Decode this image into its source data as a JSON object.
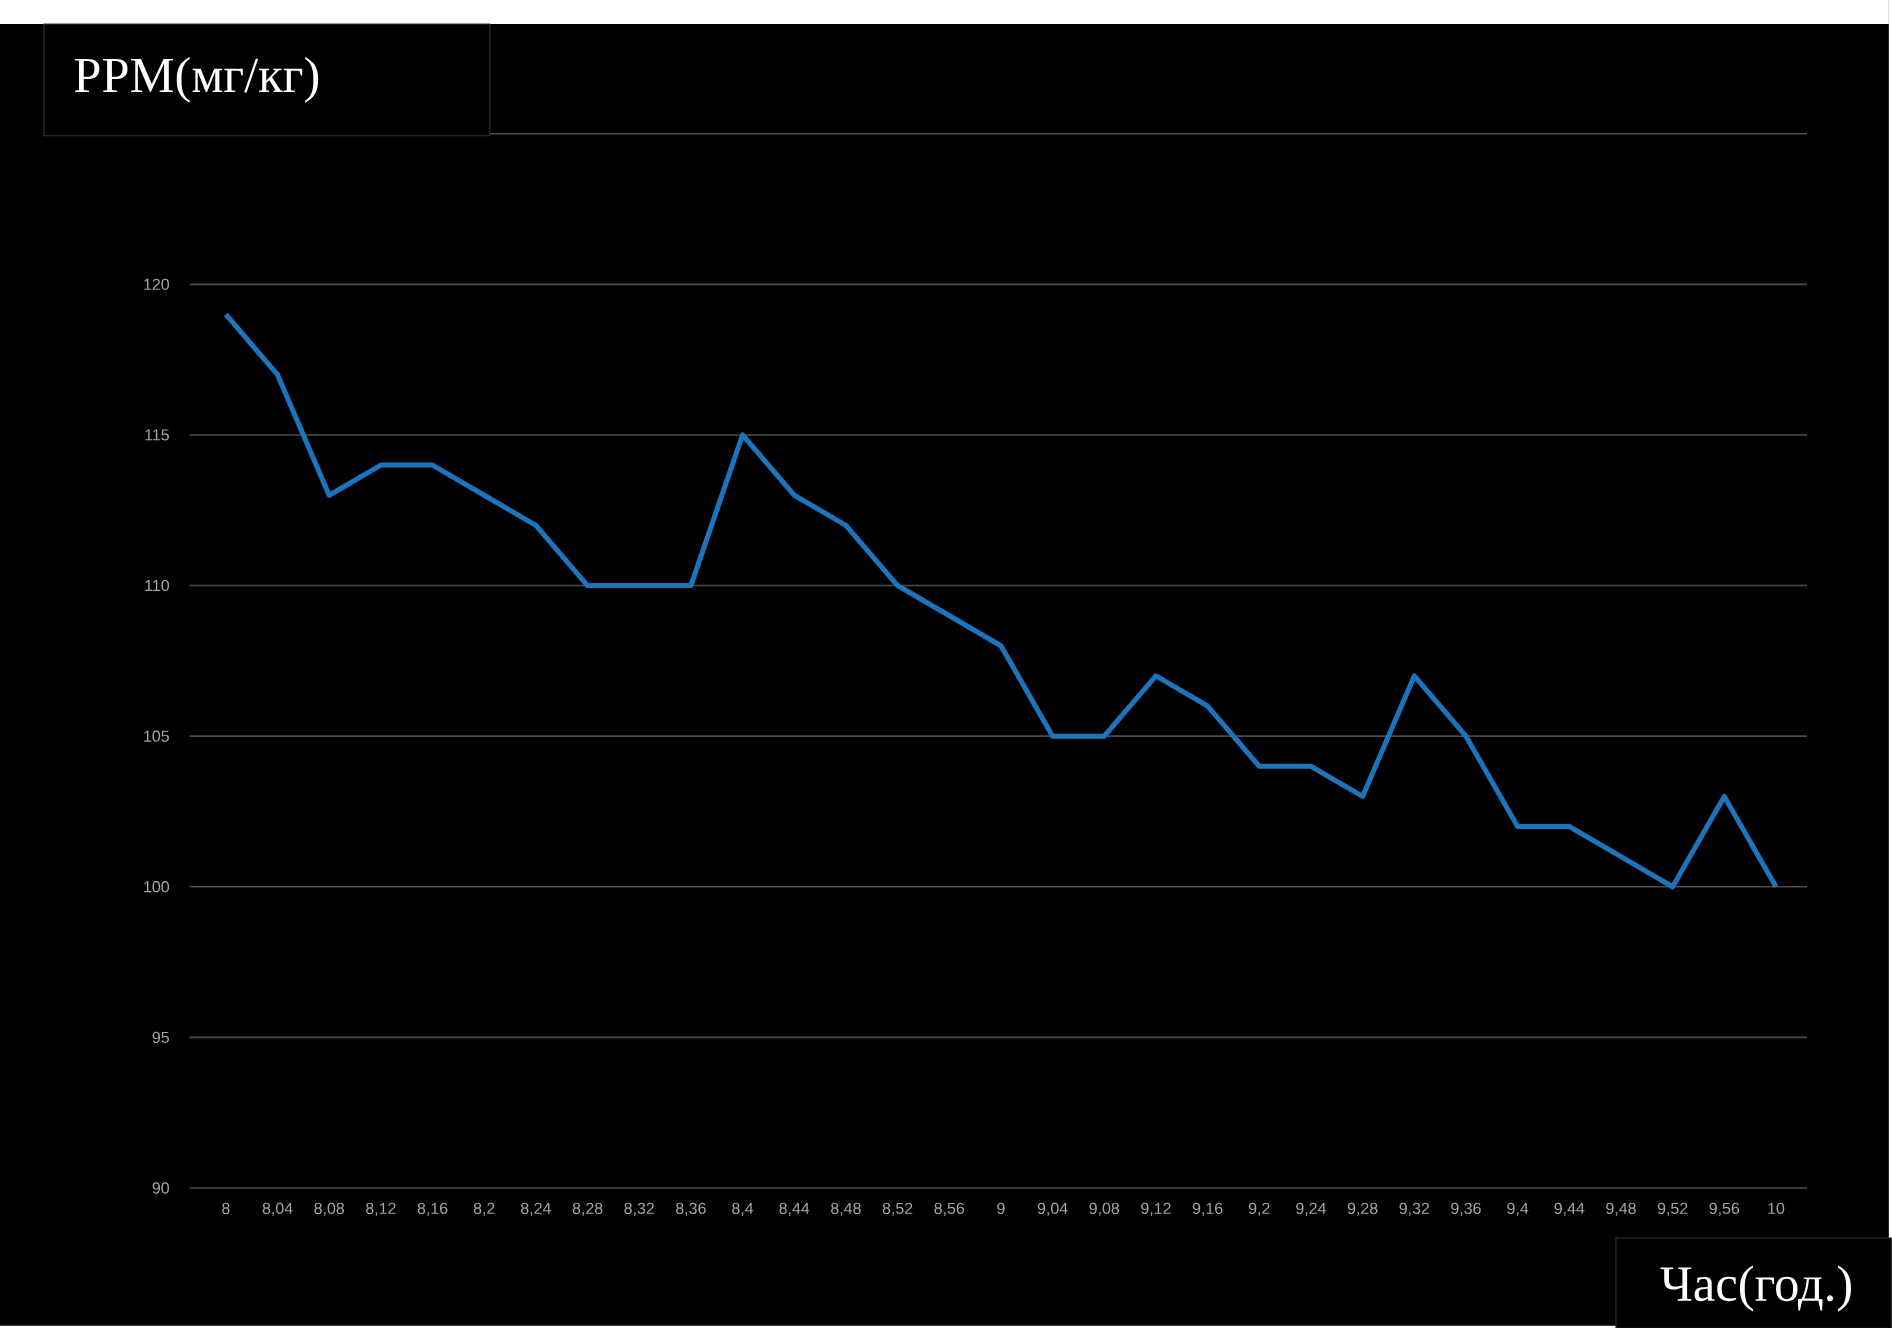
{
  "chart_data": {
    "type": "line",
    "xlabel": "Час(год.)",
    "ylabel": "PPM(мг/кг)",
    "categories": [
      "8",
      "8,04",
      "8,08",
      "8,12",
      "8,16",
      "8,2",
      "8,24",
      "8,28",
      "8,32",
      "8,36",
      "8,4",
      "8,44",
      "8,48",
      "8,52",
      "8,56",
      "9",
      "9,04",
      "9,08",
      "9,12",
      "9,16",
      "9,2",
      "9,24",
      "9,28",
      "9,32",
      "9,36",
      "9,4",
      "9,44",
      "9,48",
      "9,52",
      "9,56",
      "10"
    ],
    "series": [
      {
        "color": "#1c75bc",
        "values": [
          119,
          117,
          113,
          114,
          114,
          113,
          112,
          110,
          110,
          110,
          115,
          113,
          112,
          110,
          109,
          108,
          105,
          105,
          107,
          106,
          104,
          104,
          103,
          107,
          105,
          102,
          102,
          101,
          100,
          103,
          100
        ]
      }
    ],
    "ylim": [
      90,
      125
    ],
    "yticks": [
      90,
      95,
      100,
      105,
      110,
      115,
      120,
      {
        "value": 125,
        "label": null
      }
    ],
    "grid": "y",
    "marker": "none"
  }
}
